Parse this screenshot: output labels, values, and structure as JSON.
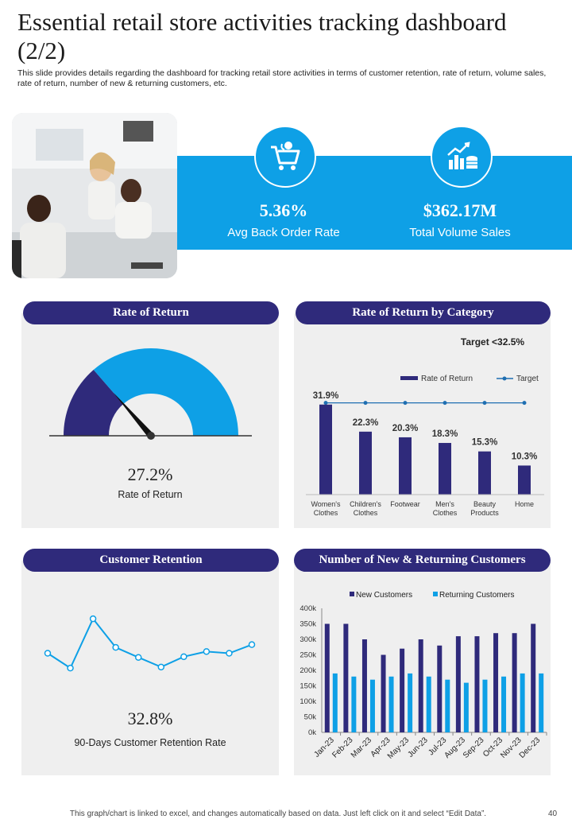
{
  "header": {
    "title": "Essential retail store activities tracking dashboard (2/2)",
    "subtitle": "This slide provides details regarding the dashboard for tracking retail store activities in terms of customer retention, rate of return, volume sales, rate of return, number of new & returning customers, etc."
  },
  "kpis": [
    {
      "value": "5.36%",
      "label": "Avg Back Order Rate",
      "icon": "shopping-cart-icon"
    },
    {
      "value": "$362.17M",
      "label": "Total Volume Sales",
      "icon": "chart-coins-icon"
    }
  ],
  "rate_of_return": {
    "title": "Rate of Return",
    "value": "27.2%",
    "label": "Rate  of Return"
  },
  "category": {
    "title": "Rate of Return by Category",
    "target_text": "Target <32.5%"
  },
  "retention": {
    "title": "Customer Retention",
    "value": "32.8%",
    "label": "90-Days  Customer Retention  Rate"
  },
  "customers": {
    "title": "Number of New & Returning Customers"
  },
  "footer": {
    "note": "This graph/chart is linked to excel,  and changes automatically based on data. Just left click on it and select “Edit Data”.",
    "page": "40"
  },
  "colors": {
    "navy": "#2f2a7b",
    "blue": "#0ea0e6",
    "panel": "#efefef"
  },
  "chart_data": [
    {
      "type": "gauge",
      "value": 27.2,
      "ylim": [
        0,
        100
      ]
    },
    {
      "type": "bar",
      "categories": [
        "Women's\nClothes",
        "Children's\nClothes",
        "Footwear",
        "Men's\nClothes",
        "Beauty\nProducts",
        "Home"
      ],
      "series": [
        {
          "name": "Rate of Return",
          "values": [
            31.9,
            22.3,
            20.3,
            18.3,
            15.3,
            10.3
          ],
          "labels": [
            "31.9%",
            "22.3%",
            "20.3%",
            "18.3%",
            "15.3%",
            "10.3%"
          ],
          "color": "#2f2a7b"
        },
        {
          "name": "Target",
          "values": [
            32.5,
            32.5,
            32.5,
            32.5,
            32.5,
            32.5
          ],
          "color": "#1f6fb2",
          "kind": "line"
        }
      ],
      "ylim": [
        0,
        40
      ],
      "legend": "top"
    },
    {
      "type": "line",
      "values": [
        23.5,
        19.2,
        33.5,
        25.2,
        22.3,
        19.5,
        22.5,
        24,
        23.5,
        26
      ],
      "ylim": [
        10,
        40
      ],
      "color": "#0ea0e6",
      "grid": false
    },
    {
      "type": "bar",
      "categories": [
        "Jan-23",
        "Feb-23",
        "Mar-23",
        "Apr-23",
        "May-23",
        "Jun-23",
        "Jul-23",
        "Aug-23",
        "Sep-23",
        "Oct-23",
        "Nov-23",
        "Dec-23"
      ],
      "series": [
        {
          "name": "New Customers",
          "values": [
            350000,
            350000,
            300000,
            250000,
            270000,
            300000,
            280000,
            310000,
            310000,
            320000,
            320000,
            350000
          ],
          "color": "#2f2a7b"
        },
        {
          "name": "Returning Customers",
          "values": [
            190000,
            180000,
            170000,
            180000,
            190000,
            180000,
            170000,
            160000,
            170000,
            180000,
            190000,
            190000
          ],
          "color": "#0ea0e6"
        }
      ],
      "yticks": [
        "0k",
        "50k",
        "100k",
        "150k",
        "200k",
        "250k",
        "300k",
        "350k",
        "400k"
      ],
      "ylim": [
        0,
        400000
      ],
      "legend": "top"
    }
  ]
}
